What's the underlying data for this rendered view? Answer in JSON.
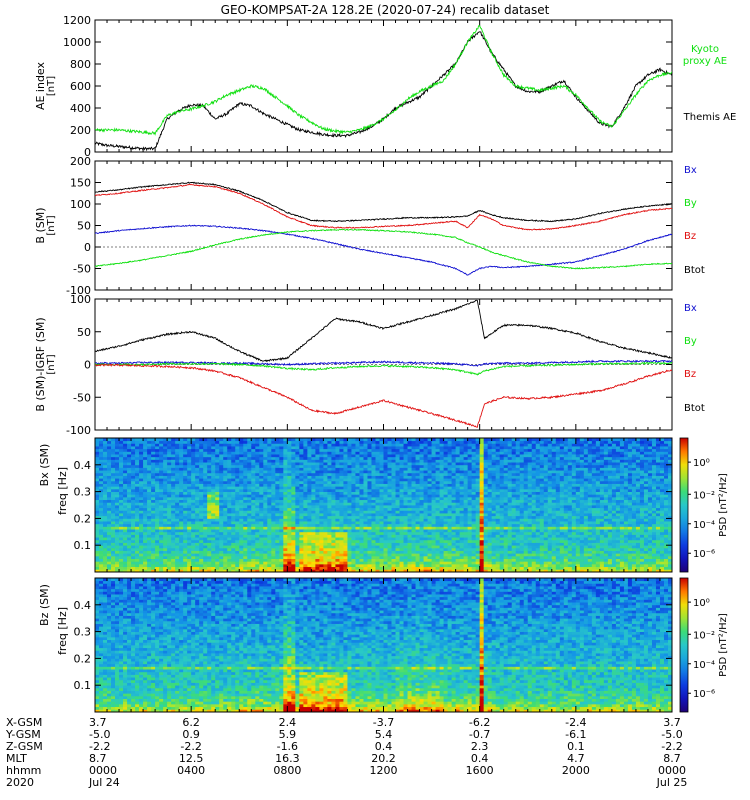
{
  "title": "GEO-KOMPSAT-2A 128.2E (2020-07-24) recalib dataset",
  "colors": {
    "black": "#000000",
    "red": "#e01010",
    "green": "#10e010",
    "blue": "#1010d0"
  },
  "chart_data": [
    {
      "id": "ae",
      "type": "line",
      "ylabel": "AE index",
      "yunit": "[nT]",
      "ylim": [
        0,
        1200
      ],
      "yticks": [
        0,
        200,
        400,
        600,
        800,
        1000,
        1200
      ],
      "x_hours": [
        0,
        0.5,
        1,
        1.5,
        2,
        2.5,
        3,
        3.5,
        4,
        4.5,
        5,
        5.5,
        6,
        6.5,
        7,
        7.5,
        8,
        8.5,
        9,
        9.5,
        10,
        10.5,
        11,
        11.5,
        12,
        12.5,
        13,
        13.5,
        14,
        14.5,
        15,
        15.5,
        16,
        16.5,
        17,
        17.5,
        18,
        18.5,
        19,
        19.5,
        20,
        20.5,
        21,
        21.5,
        22,
        22.5,
        23,
        23.5,
        24
      ],
      "series": [
        {
          "name": "Themis AE",
          "color": "black",
          "values": [
            80,
            60,
            50,
            40,
            30,
            30,
            300,
            380,
            430,
            420,
            300,
            350,
            440,
            420,
            350,
            300,
            250,
            200,
            180,
            160,
            150,
            150,
            180,
            230,
            300,
            400,
            450,
            500,
            600,
            700,
            800,
            1000,
            1100,
            900,
            750,
            600,
            550,
            550,
            600,
            650,
            500,
            380,
            260,
            230,
            400,
            600,
            700,
            750,
            700
          ]
        },
        {
          "name": "Kyoto proxy AE",
          "color": "green",
          "values": [
            200,
            200,
            200,
            190,
            180,
            170,
            330,
            370,
            390,
            420,
            460,
            520,
            560,
            600,
            580,
            500,
            420,
            330,
            270,
            210,
            190,
            180,
            200,
            240,
            300,
            380,
            480,
            550,
            600,
            650,
            800,
            1000,
            1150,
            900,
            700,
            600,
            580,
            560,
            580,
            600,
            520,
            400,
            280,
            230,
            370,
            520,
            650,
            700,
            720
          ]
        }
      ]
    },
    {
      "id": "bsm",
      "type": "line",
      "ylabel": "B (SM)",
      "yunit": "[nT]",
      "ylim": [
        -100,
        200
      ],
      "yticks": [
        -100,
        -50,
        0,
        50,
        100,
        150,
        200
      ],
      "x_hours": [
        0,
        1,
        2,
        3,
        4,
        5,
        6,
        7,
        8,
        9,
        10,
        11,
        12,
        13,
        14,
        15,
        15.5,
        16,
        16.5,
        17,
        18,
        19,
        20,
        21,
        22,
        23,
        24
      ],
      "series": [
        {
          "name": "Bx",
          "color": "blue",
          "values": [
            32,
            38,
            43,
            47,
            50,
            48,
            44,
            38,
            30,
            20,
            8,
            -5,
            -15,
            -25,
            -35,
            -50,
            -65,
            -50,
            -45,
            -48,
            -45,
            -40,
            -35,
            -20,
            -5,
            15,
            30
          ]
        },
        {
          "name": "By",
          "color": "green",
          "values": [
            -45,
            -38,
            -30,
            -20,
            -10,
            5,
            18,
            28,
            35,
            38,
            40,
            40,
            38,
            35,
            30,
            22,
            10,
            0,
            -12,
            -20,
            -35,
            -45,
            -50,
            -48,
            -45,
            -40,
            -38
          ]
        },
        {
          "name": "Bz",
          "color": "red",
          "values": [
            120,
            125,
            132,
            138,
            145,
            140,
            125,
            100,
            70,
            50,
            45,
            45,
            48,
            50,
            55,
            60,
            45,
            75,
            65,
            50,
            40,
            42,
            50,
            60,
            75,
            85,
            90
          ]
        },
        {
          "name": "Btot",
          "color": "black",
          "values": [
            128,
            133,
            140,
            145,
            150,
            145,
            130,
            108,
            80,
            62,
            60,
            62,
            65,
            68,
            68,
            70,
            72,
            85,
            75,
            68,
            62,
            60,
            65,
            78,
            88,
            95,
            100
          ]
        }
      ]
    },
    {
      "id": "bigrf",
      "type": "line",
      "ylabel": "B (SM)-IGRF (SM)",
      "yunit": "[nT]",
      "ylim": [
        -100,
        100
      ],
      "yticks": [
        -100,
        -50,
        0,
        50,
        100
      ],
      "x_hours": [
        0,
        1,
        2,
        3,
        4,
        5,
        6,
        7,
        8,
        9,
        10,
        11,
        12,
        13,
        14,
        15,
        15.9,
        16.2,
        17,
        18,
        19,
        20,
        21,
        22,
        23,
        24
      ],
      "series": [
        {
          "name": "Bx",
          "color": "blue",
          "values": [
            2,
            2,
            3,
            3,
            3,
            2,
            2,
            1,
            0,
            1,
            2,
            3,
            4,
            3,
            2,
            1,
            -2,
            1,
            2,
            2,
            3,
            4,
            5,
            5,
            5,
            5
          ]
        },
        {
          "name": "By",
          "color": "green",
          "values": [
            0,
            0,
            0,
            1,
            1,
            1,
            0,
            -2,
            -6,
            -8,
            -5,
            -3,
            -2,
            -3,
            -5,
            -8,
            -15,
            -10,
            -3,
            -2,
            -1,
            0,
            1,
            1,
            2,
            2
          ]
        },
        {
          "name": "Bz",
          "color": "red",
          "values": [
            -1,
            -1,
            -2,
            -3,
            -5,
            -10,
            -20,
            -35,
            -50,
            -70,
            -75,
            -65,
            -55,
            -65,
            -75,
            -85,
            -95,
            -60,
            -50,
            -52,
            -50,
            -45,
            -40,
            -30,
            -18,
            -8
          ]
        },
        {
          "name": "Btot",
          "color": "black",
          "values": [
            20,
            28,
            38,
            46,
            50,
            40,
            20,
            5,
            10,
            40,
            70,
            65,
            55,
            65,
            75,
            85,
            98,
            40,
            60,
            60,
            55,
            48,
            35,
            25,
            18,
            10
          ]
        }
      ]
    },
    {
      "id": "spec_bx",
      "type": "heatmap",
      "ylabel_top": "Bx (SM)",
      "ylabel": "freq [Hz]",
      "ylim": [
        0,
        0.5
      ],
      "yticks": [
        0.1,
        0.2,
        0.3,
        0.4
      ],
      "colorbar_label": "PSD [nT²/Hz]",
      "colorbar_ticks": [
        "10⁰",
        "10⁻²",
        "10⁻⁴",
        "10⁻⁶"
      ]
    },
    {
      "id": "spec_bz",
      "type": "heatmap",
      "ylabel_top": "Bz (SM)",
      "ylabel": "freq [Hz]",
      "ylim": [
        0,
        0.5
      ],
      "yticks": [
        0.1,
        0.2,
        0.3,
        0.4
      ],
      "colorbar_label": "PSD [nT²/Hz]",
      "colorbar_ticks": [
        "10⁰",
        "10⁻²",
        "10⁻⁴",
        "10⁻⁶"
      ]
    }
  ],
  "ephemeris": {
    "row_labels": [
      "X-GSM",
      "Y-GSM",
      "Z-GSM",
      "MLT",
      "hhmm",
      "2020"
    ],
    "columns": [
      [
        "3.7",
        "-5.0",
        "-2.2",
        "8.7",
        "0000",
        "Jul 24"
      ],
      [
        "6.2",
        "0.9",
        "-2.2",
        "12.5",
        "0400",
        ""
      ],
      [
        "2.4",
        "5.9",
        "-1.6",
        "16.3",
        "0800",
        ""
      ],
      [
        "-3.7",
        "5.4",
        "0.4",
        "20.2",
        "1200",
        ""
      ],
      [
        "-6.2",
        "-0.7",
        "2.3",
        "0.4",
        "1600",
        ""
      ],
      [
        "-2.4",
        "-6.1",
        "0.1",
        "4.7",
        "2000",
        ""
      ],
      [
        "3.7",
        "-5.0",
        "-2.2",
        "8.7",
        "0000",
        "Jul 25"
      ]
    ]
  }
}
